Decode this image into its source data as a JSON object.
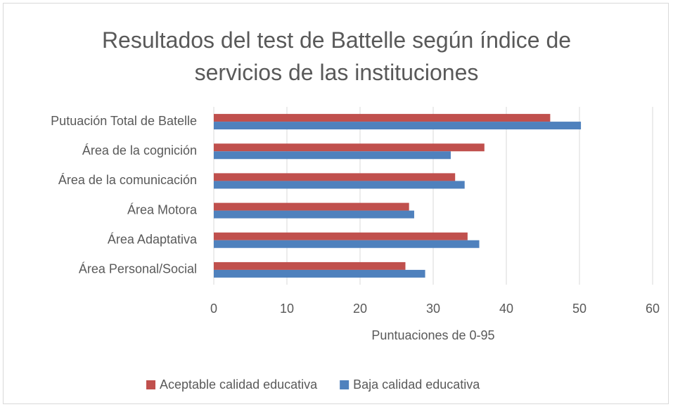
{
  "chart_data": {
    "type": "hbar",
    "title": "Resultados del test de Battelle según índice de servicios de las instituciones",
    "x_label": "Puntuaciones de 0-95",
    "categories": [
      "Putuación Total de Batelle",
      "Área de la cognición",
      "Área de la comunicación",
      "Área Motora",
      "Área Adaptativa",
      "Área Personal/Social"
    ],
    "series": [
      {
        "name": "Aceptable calidad educativa",
        "color": "#c0504d",
        "values": [
          46,
          37,
          33,
          26.7,
          34.7,
          26.2
        ]
      },
      {
        "name": "Baja calidad educativa",
        "color": "#4f81bd",
        "values": [
          50.2,
          32.4,
          34.3,
          27.4,
          36.3,
          28.9
        ]
      }
    ],
    "xlim": [
      0,
      60
    ],
    "xticks": [
      0,
      10,
      20,
      30,
      40,
      50,
      60
    ],
    "grid": true,
    "legend": "bottom"
  }
}
